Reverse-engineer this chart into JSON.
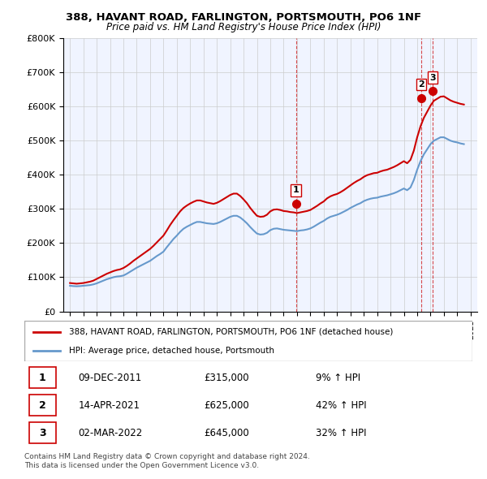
{
  "title": "388, HAVANT ROAD, FARLINGTON, PORTSMOUTH, PO6 1NF",
  "subtitle": "Price paid vs. HM Land Registry's House Price Index (HPI)",
  "legend_line1": "388, HAVANT ROAD, FARLINGTON, PORTSMOUTH, PO6 1NF (detached house)",
  "legend_line2": "HPI: Average price, detached house, Portsmouth",
  "transactions": [
    {
      "label": "1",
      "date": "09-DEC-2011",
      "price": "£315,000",
      "hpi": "9% ↑ HPI",
      "year": 2011.92,
      "value": 315000
    },
    {
      "label": "2",
      "date": "14-APR-2021",
      "price": "£625,000",
      "hpi": "42% ↑ HPI",
      "year": 2021.29,
      "value": 625000
    },
    {
      "label": "3",
      "date": "02-MAR-2022",
      "price": "£645,000",
      "hpi": "32% ↑ HPI",
      "year": 2022.17,
      "value": 645000
    }
  ],
  "footnote1": "Contains HM Land Registry data © Crown copyright and database right 2024.",
  "footnote2": "This data is licensed under the Open Government Licence v3.0.",
  "ylim": [
    0,
    800000
  ],
  "yticks": [
    0,
    100000,
    200000,
    300000,
    400000,
    500000,
    600000,
    700000,
    800000
  ],
  "ytick_labels": [
    "£0",
    "£100K",
    "£200K",
    "£300K",
    "£400K",
    "£500K",
    "£600K",
    "£700K",
    "£800K"
  ],
  "hpi_color": "#6699cc",
  "price_color": "#cc0000",
  "marker_color": "#cc0000",
  "vline_color": "#cc0000",
  "grid_color": "#cccccc",
  "background_color": "#f0f4ff",
  "hpi_data": {
    "years": [
      1995.0,
      1995.25,
      1995.5,
      1995.75,
      1996.0,
      1996.25,
      1996.5,
      1996.75,
      1997.0,
      1997.25,
      1997.5,
      1997.75,
      1998.0,
      1998.25,
      1998.5,
      1998.75,
      1999.0,
      1999.25,
      1999.5,
      1999.75,
      2000.0,
      2000.25,
      2000.5,
      2000.75,
      2001.0,
      2001.25,
      2001.5,
      2001.75,
      2002.0,
      2002.25,
      2002.5,
      2002.75,
      2003.0,
      2003.25,
      2003.5,
      2003.75,
      2004.0,
      2004.25,
      2004.5,
      2004.75,
      2005.0,
      2005.25,
      2005.5,
      2005.75,
      2006.0,
      2006.25,
      2006.5,
      2006.75,
      2007.0,
      2007.25,
      2007.5,
      2007.75,
      2008.0,
      2008.25,
      2008.5,
      2008.75,
      2009.0,
      2009.25,
      2009.5,
      2009.75,
      2010.0,
      2010.25,
      2010.5,
      2010.75,
      2011.0,
      2011.25,
      2011.5,
      2011.75,
      2012.0,
      2012.25,
      2012.5,
      2012.75,
      2013.0,
      2013.25,
      2013.5,
      2013.75,
      2014.0,
      2014.25,
      2014.5,
      2014.75,
      2015.0,
      2015.25,
      2015.5,
      2015.75,
      2016.0,
      2016.25,
      2016.5,
      2016.75,
      2017.0,
      2017.25,
      2017.5,
      2017.75,
      2018.0,
      2018.25,
      2018.5,
      2018.75,
      2019.0,
      2019.25,
      2019.5,
      2019.75,
      2020.0,
      2020.25,
      2020.5,
      2020.75,
      2021.0,
      2021.25,
      2021.5,
      2021.75,
      2022.0,
      2022.25,
      2022.5,
      2022.75,
      2023.0,
      2023.25,
      2023.5,
      2023.75,
      2024.0,
      2024.25,
      2024.5
    ],
    "values": [
      75000,
      74000,
      73500,
      74000,
      75000,
      76000,
      77000,
      79000,
      82000,
      86000,
      90000,
      94000,
      97000,
      100000,
      102000,
      103000,
      105000,
      110000,
      116000,
      122000,
      128000,
      133000,
      138000,
      143000,
      148000,
      155000,
      162000,
      168000,
      175000,
      188000,
      200000,
      212000,
      222000,
      233000,
      242000,
      248000,
      253000,
      258000,
      262000,
      262000,
      260000,
      258000,
      257000,
      256000,
      258000,
      262000,
      267000,
      272000,
      277000,
      280000,
      280000,
      275000,
      267000,
      258000,
      247000,
      237000,
      228000,
      225000,
      226000,
      230000,
      238000,
      242000,
      243000,
      241000,
      239000,
      238000,
      237000,
      236000,
      235000,
      237000,
      238000,
      240000,
      243000,
      248000,
      254000,
      260000,
      265000,
      272000,
      277000,
      280000,
      283000,
      287000,
      292000,
      297000,
      303000,
      308000,
      313000,
      317000,
      323000,
      327000,
      330000,
      332000,
      333000,
      336000,
      338000,
      340000,
      343000,
      346000,
      350000,
      355000,
      360000,
      355000,
      363000,
      385000,
      415000,
      440000,
      460000,
      475000,
      490000,
      500000,
      505000,
      510000,
      510000,
      505000,
      500000,
      497000,
      495000,
      492000,
      490000
    ]
  },
  "price_data": {
    "years": [
      1995.0,
      1995.25,
      1995.5,
      1995.75,
      1996.0,
      1996.25,
      1996.5,
      1996.75,
      1997.0,
      1997.25,
      1997.5,
      1997.75,
      1998.0,
      1998.25,
      1998.5,
      1998.75,
      1999.0,
      1999.25,
      1999.5,
      1999.75,
      2000.0,
      2000.25,
      2000.5,
      2000.75,
      2001.0,
      2001.25,
      2001.5,
      2001.75,
      2002.0,
      2002.25,
      2002.5,
      2002.75,
      2003.0,
      2003.25,
      2003.5,
      2003.75,
      2004.0,
      2004.25,
      2004.5,
      2004.75,
      2005.0,
      2005.25,
      2005.5,
      2005.75,
      2006.0,
      2006.25,
      2006.5,
      2006.75,
      2007.0,
      2007.25,
      2007.5,
      2007.75,
      2008.0,
      2008.25,
      2008.5,
      2008.75,
      2009.0,
      2009.25,
      2009.5,
      2009.75,
      2010.0,
      2010.25,
      2010.5,
      2010.75,
      2011.0,
      2011.25,
      2011.5,
      2011.75,
      2012.0,
      2012.25,
      2012.5,
      2012.75,
      2013.0,
      2013.25,
      2013.5,
      2013.75,
      2014.0,
      2014.25,
      2014.5,
      2014.75,
      2015.0,
      2015.25,
      2015.5,
      2015.75,
      2016.0,
      2016.25,
      2016.5,
      2016.75,
      2017.0,
      2017.25,
      2017.5,
      2017.75,
      2018.0,
      2018.25,
      2018.5,
      2018.75,
      2019.0,
      2019.25,
      2019.5,
      2019.75,
      2020.0,
      2020.25,
      2020.5,
      2020.75,
      2021.0,
      2021.25,
      2021.5,
      2021.75,
      2022.0,
      2022.25,
      2022.5,
      2022.75,
      2023.0,
      2023.25,
      2023.5,
      2023.75,
      2024.0,
      2024.25,
      2024.5
    ],
    "values": [
      83000,
      82000,
      81000,
      82000,
      83000,
      85000,
      87000,
      90000,
      95000,
      100000,
      105000,
      110000,
      114000,
      118000,
      121000,
      123000,
      127000,
      133000,
      140000,
      148000,
      155000,
      162000,
      169000,
      176000,
      183000,
      192000,
      202000,
      212000,
      222000,
      237000,
      253000,
      267000,
      280000,
      293000,
      303000,
      310000,
      316000,
      321000,
      325000,
      325000,
      322000,
      319000,
      317000,
      315000,
      318000,
      323000,
      329000,
      335000,
      341000,
      345000,
      345000,
      338000,
      328000,
      317000,
      303000,
      291000,
      280000,
      277000,
      278000,
      283000,
      293000,
      298000,
      299000,
      297000,
      294000,
      293000,
      291000,
      290000,
      288000,
      290000,
      292000,
      294000,
      297000,
      303000,
      309000,
      316000,
      322000,
      331000,
      337000,
      341000,
      344000,
      349000,
      355000,
      362000,
      369000,
      376000,
      382000,
      387000,
      394000,
      399000,
      402000,
      405000,
      406000,
      410000,
      413000,
      415000,
      419000,
      423000,
      428000,
      434000,
      440000,
      434000,
      444000,
      471000,
      510000,
      542000,
      567000,
      585000,
      603000,
      617000,
      623000,
      629000,
      630000,
      624000,
      618000,
      614000,
      611000,
      608000,
      606000
    ]
  }
}
